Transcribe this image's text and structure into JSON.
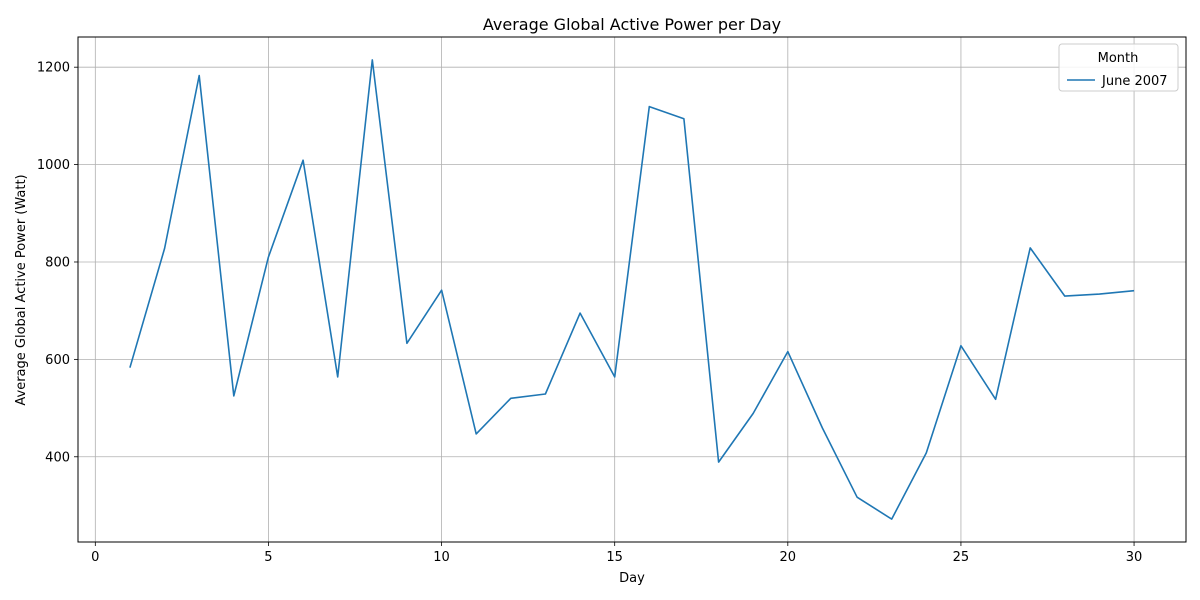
{
  "chart_data": {
    "type": "line",
    "title": "Average Global Active Power per Day",
    "xlabel": "Day",
    "ylabel": "Average Global Active Power (Watt)",
    "xlim": [
      -0.5,
      31.5
    ],
    "ylim": [
      225,
      1262
    ],
    "xticks": [
      0,
      5,
      10,
      15,
      20,
      25,
      30
    ],
    "yticks": [
      400,
      600,
      800,
      1000,
      1200
    ],
    "grid": true,
    "legend": {
      "title": "Month",
      "placement": "top-right"
    },
    "series": [
      {
        "name": "June 2007",
        "color": "#1f77b4",
        "x": [
          1,
          2,
          3,
          4,
          5,
          6,
          7,
          8,
          9,
          10,
          11,
          12,
          13,
          14,
          15,
          16,
          17,
          18,
          19,
          20,
          21,
          22,
          23,
          24,
          25,
          26,
          27,
          28,
          29,
          30
        ],
        "y": [
          583,
          828,
          1183,
          525,
          810,
          1009,
          564,
          1215,
          633,
          742,
          447,
          520,
          529,
          695,
          564,
          1119,
          1094,
          389,
          489,
          616,
          459,
          317,
          272,
          408,
          628,
          518,
          829,
          730,
          734,
          741
        ]
      }
    ]
  }
}
